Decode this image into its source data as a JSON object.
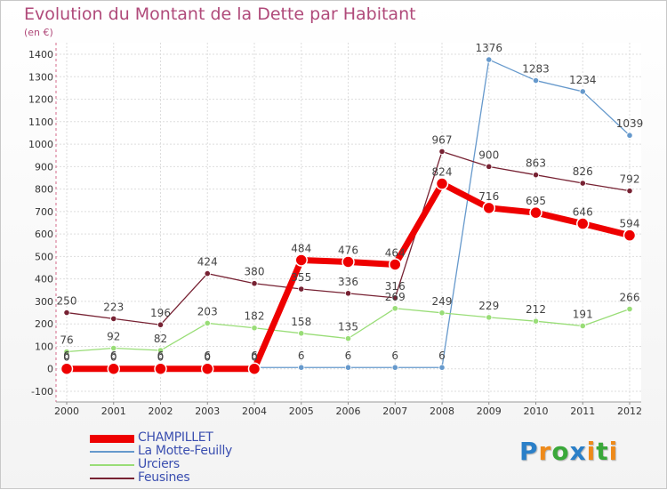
{
  "chart_data": {
    "type": "line",
    "title": "Evolution du Montant de la Dette par Habitant",
    "subtitle": "(en €)",
    "x": [
      "2000",
      "2001",
      "2002",
      "2003",
      "2004",
      "2005",
      "2006",
      "2007",
      "2008",
      "2009",
      "2010",
      "2011",
      "2012"
    ],
    "ylim": [
      -100,
      1400
    ],
    "yticks": [
      -100,
      0,
      100,
      200,
      300,
      400,
      500,
      600,
      700,
      800,
      900,
      1000,
      1100,
      1200,
      1300,
      1400
    ],
    "grid": true,
    "legend_position": "bottom-left",
    "series": [
      {
        "name": "CHAMPILLET",
        "color": "#ee0000",
        "values": [
          0,
          0,
          0,
          0,
          0,
          484,
          476,
          464,
          824,
          716,
          695,
          646,
          594
        ]
      },
      {
        "name": "La Motte-Feuilly",
        "color": "#6699cc",
        "values": [
          6,
          6,
          6,
          6,
          6,
          6,
          6,
          6,
          6,
          1376,
          1283,
          1234,
          1039
        ]
      },
      {
        "name": "Urciers",
        "color": "#99dd77",
        "values": [
          76,
          92,
          82,
          203,
          182,
          158,
          135,
          269,
          249,
          229,
          212,
          191,
          266
        ]
      },
      {
        "name": "Feusines",
        "color": "#772233",
        "values": [
          250,
          223,
          196,
          424,
          380,
          355,
          336,
          316,
          967,
          900,
          863,
          826,
          792
        ]
      }
    ]
  },
  "brand": {
    "letters": [
      "P",
      "r",
      "o",
      "x",
      "i",
      "t",
      "i"
    ],
    "colors": [
      "#2a7fc8",
      "#ee8a1a",
      "#3aa83a",
      "#2a7fc8",
      "#ee8a1a",
      "#3aa83a",
      "#ee8a1a"
    ]
  }
}
